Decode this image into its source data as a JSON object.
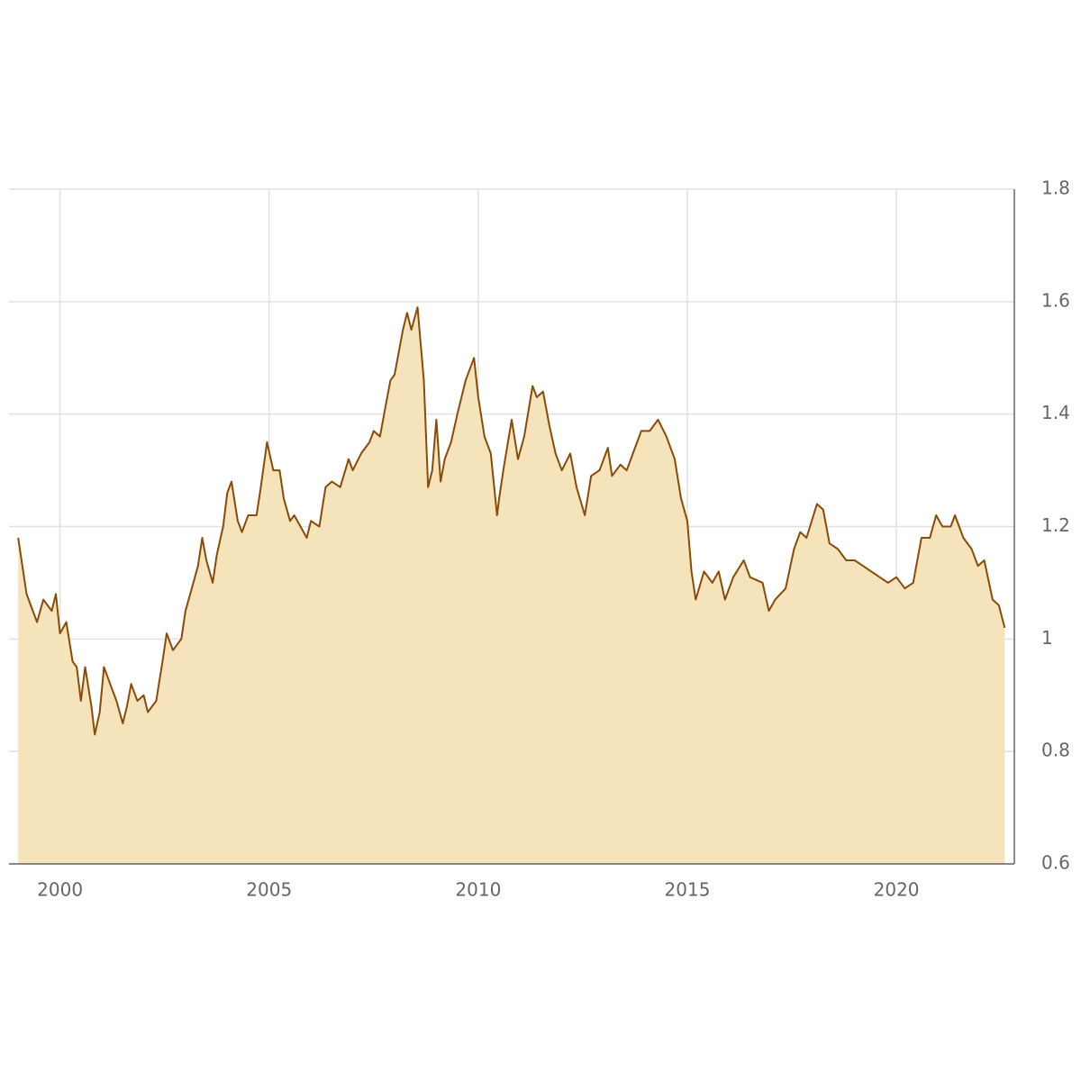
{
  "chart_data": {
    "type": "area",
    "x": [
      1999.0,
      1999.2,
      1999.45,
      1999.6,
      1999.8,
      1999.9,
      2000.0,
      2000.15,
      2000.3,
      2000.4,
      2000.5,
      2000.6,
      2000.75,
      2000.83,
      2000.95,
      2001.05,
      2001.2,
      2001.35,
      2001.5,
      2001.6,
      2001.7,
      2001.85,
      2002.0,
      2002.1,
      2002.3,
      2002.45,
      2002.55,
      2002.7,
      2002.9,
      2003.0,
      2003.15,
      2003.3,
      2003.4,
      2003.5,
      2003.65,
      2003.75,
      2003.9,
      2004.0,
      2004.1,
      2004.25,
      2004.35,
      2004.5,
      2004.7,
      2004.8,
      2004.95,
      2005.1,
      2005.25,
      2005.35,
      2005.5,
      2005.6,
      2005.75,
      2005.9,
      2006.0,
      2006.2,
      2006.35,
      2006.5,
      2006.7,
      2006.9,
      2007.0,
      2007.2,
      2007.4,
      2007.5,
      2007.65,
      2007.8,
      2007.9,
      2008.0,
      2008.2,
      2008.3,
      2008.4,
      2008.55,
      2008.7,
      2008.8,
      2008.9,
      2009.0,
      2009.1,
      2009.2,
      2009.35,
      2009.5,
      2009.7,
      2009.9,
      2010.0,
      2010.15,
      2010.3,
      2010.45,
      2010.5,
      2010.6,
      2010.8,
      2010.95,
      2011.1,
      2011.3,
      2011.4,
      2011.55,
      2011.7,
      2011.85,
      2012.0,
      2012.2,
      2012.35,
      2012.55,
      2012.7,
      2012.9,
      2013.1,
      2013.2,
      2013.4,
      2013.55,
      2013.7,
      2013.9,
      2014.1,
      2014.3,
      2014.5,
      2014.7,
      2014.85,
      2015.0,
      2015.1,
      2015.2,
      2015.4,
      2015.6,
      2015.75,
      2015.9,
      2016.1,
      2016.35,
      2016.5,
      2016.8,
      2016.95,
      2017.1,
      2017.35,
      2017.55,
      2017.7,
      2017.85,
      2018.1,
      2018.25,
      2018.4,
      2018.6,
      2018.8,
      2019.0,
      2019.2,
      2019.4,
      2019.6,
      2019.8,
      2020.0,
      2020.2,
      2020.4,
      2020.5,
      2020.6,
      2020.8,
      2020.95,
      2021.1,
      2021.3,
      2021.4,
      2021.6,
      2021.8,
      2021.95,
      2022.1,
      2022.3,
      2022.45,
      2022.59
    ],
    "values": [
      1.18,
      1.08,
      1.03,
      1.07,
      1.05,
      1.08,
      1.01,
      1.03,
      0.96,
      0.95,
      0.89,
      0.95,
      0.88,
      0.83,
      0.87,
      0.95,
      0.92,
      0.89,
      0.85,
      0.88,
      0.92,
      0.89,
      0.9,
      0.87,
      0.89,
      0.96,
      1.01,
      0.98,
      1.0,
      1.05,
      1.09,
      1.13,
      1.18,
      1.14,
      1.1,
      1.15,
      1.2,
      1.26,
      1.28,
      1.21,
      1.19,
      1.22,
      1.22,
      1.27,
      1.35,
      1.3,
      1.3,
      1.25,
      1.21,
      1.22,
      1.2,
      1.18,
      1.21,
      1.2,
      1.27,
      1.28,
      1.27,
      1.32,
      1.3,
      1.33,
      1.35,
      1.37,
      1.36,
      1.42,
      1.46,
      1.47,
      1.55,
      1.58,
      1.55,
      1.59,
      1.46,
      1.27,
      1.3,
      1.39,
      1.28,
      1.32,
      1.35,
      1.4,
      1.46,
      1.5,
      1.43,
      1.36,
      1.33,
      1.22,
      1.25,
      1.3,
      1.39,
      1.32,
      1.36,
      1.45,
      1.43,
      1.44,
      1.38,
      1.33,
      1.3,
      1.33,
      1.27,
      1.22,
      1.29,
      1.3,
      1.34,
      1.29,
      1.31,
      1.3,
      1.33,
      1.37,
      1.37,
      1.39,
      1.36,
      1.32,
      1.25,
      1.21,
      1.12,
      1.07,
      1.12,
      1.1,
      1.12,
      1.07,
      1.11,
      1.14,
      1.11,
      1.1,
      1.05,
      1.07,
      1.09,
      1.16,
      1.19,
      1.18,
      1.24,
      1.23,
      1.17,
      1.16,
      1.14,
      1.14,
      1.13,
      1.12,
      1.11,
      1.1,
      1.11,
      1.09,
      1.1,
      1.14,
      1.18,
      1.18,
      1.22,
      1.2,
      1.2,
      1.22,
      1.18,
      1.16,
      1.13,
      1.14,
      1.07,
      1.06,
      1.02
    ],
    "color": "#8b4a06",
    "fill_color": "#f5e3bc",
    "xlim": [
      1998.78,
      2022.82
    ],
    "xticks": [
      2000,
      2005,
      2010,
      2015,
      2020
    ],
    "ylim": [
      0.6,
      1.8
    ],
    "yticks": [
      0.6,
      0.8,
      1,
      1.2,
      1.4,
      1.6,
      1.8
    ],
    "grid": true,
    "y_axis_side": "right"
  }
}
